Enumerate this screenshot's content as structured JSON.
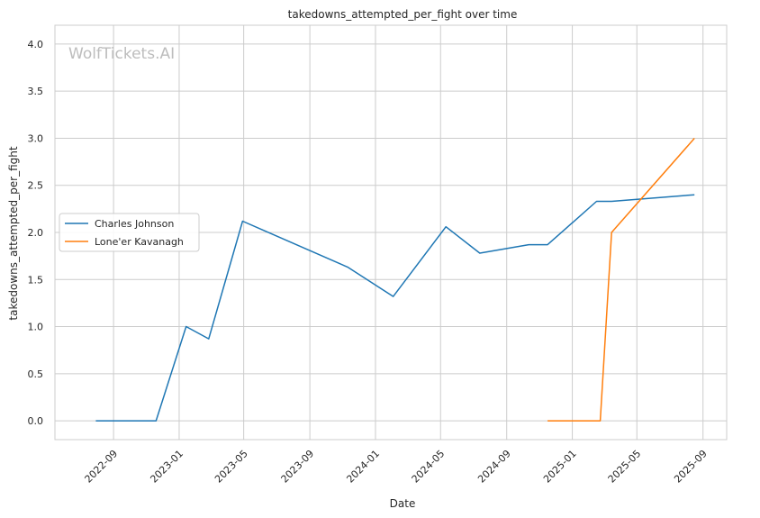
{
  "chart_data": {
    "type": "line",
    "title": "takedowns_attempted_per_fight over time",
    "xlabel": "Date",
    "ylabel": "takedowns_attempted_per_fight",
    "watermark": "WolfTickets.AI",
    "xlim": [
      "2022-05-15",
      "2025-10-15"
    ],
    "ylim": [
      -0.2,
      4.2
    ],
    "x_ticks": [
      "2022-09",
      "2023-01",
      "2023-05",
      "2023-09",
      "2024-01",
      "2024-05",
      "2024-09",
      "2025-01",
      "2025-05",
      "2025-09"
    ],
    "y_ticks": [
      "0.0",
      "0.5",
      "1.0",
      "1.5",
      "2.0",
      "2.5",
      "3.0",
      "3.5",
      "4.0"
    ],
    "grid": true,
    "legend_position": "center-left",
    "series": [
      {
        "name": "Charles Johnson",
        "color": "#1f77b4",
        "x": [
          "2022-07-30",
          "2022-11-19",
          "2023-01-14",
          "2023-02-25",
          "2023-04-29",
          "2023-11-11",
          "2024-02-03",
          "2024-05-11",
          "2024-07-13",
          "2024-10-12",
          "2024-11-16",
          "2025-02-15",
          "2025-03-15",
          "2025-08-16"
        ],
        "values": [
          0.0,
          0.0,
          1.0,
          0.87,
          2.12,
          1.63,
          1.32,
          2.06,
          1.78,
          1.87,
          1.87,
          2.33,
          2.33,
          2.4
        ]
      },
      {
        "name": "Lone'er Kavanagh",
        "color": "#ff7f0e",
        "x": [
          "2024-11-16",
          "2025-02-22",
          "2025-03-15",
          "2025-08-16"
        ],
        "values": [
          0.0,
          0.0,
          2.0,
          3.0
        ]
      }
    ]
  }
}
